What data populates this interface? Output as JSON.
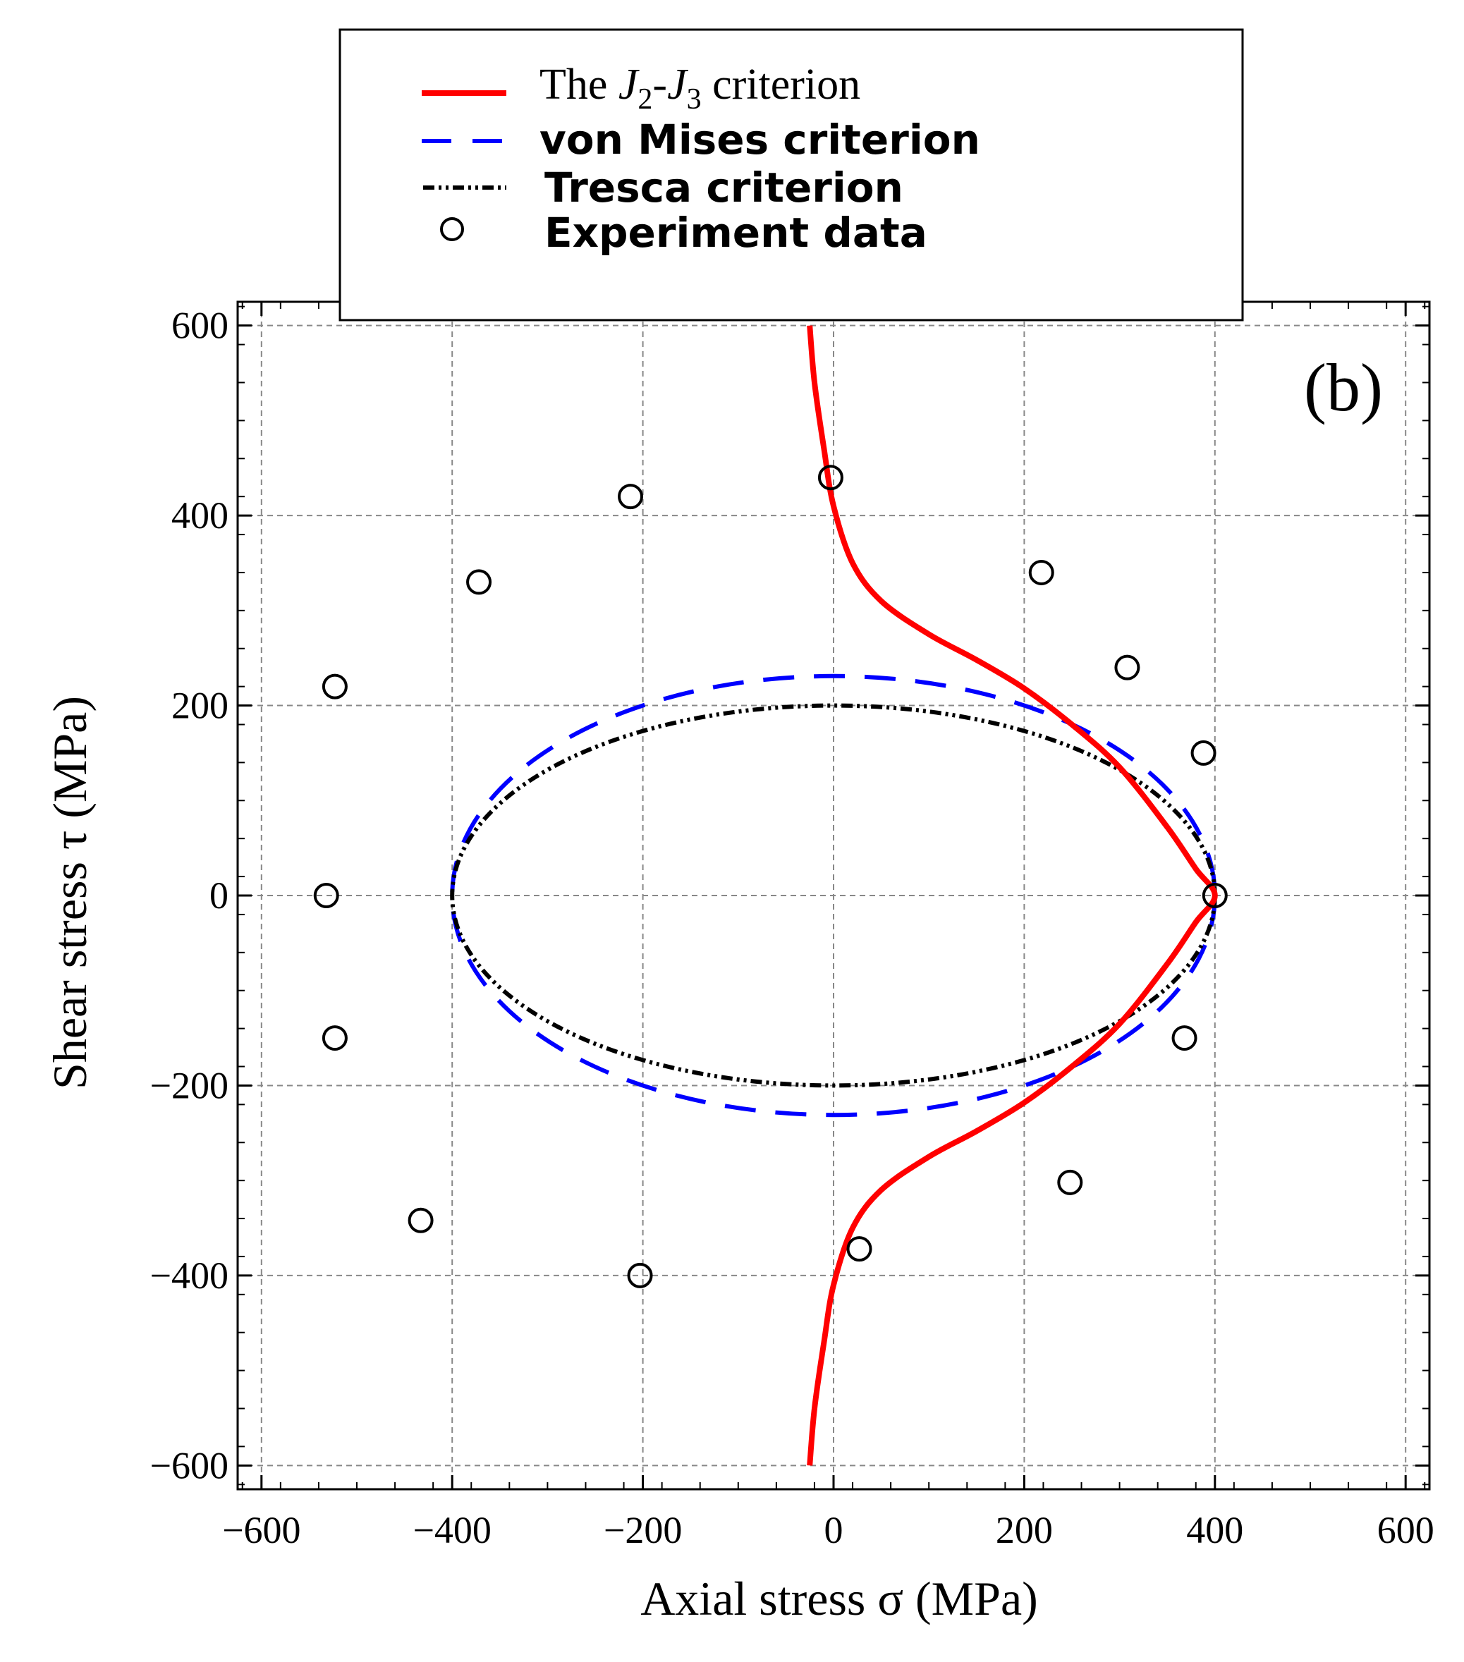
{
  "chart_data": {
    "type": "line",
    "panel_label": "(b)",
    "xlabel": "Axial stress σ (MPa)",
    "ylabel": "Shear stress τ (MPa)",
    "xlim": [
      -625,
      625
    ],
    "ylim": [
      -625,
      625
    ],
    "xticks": [
      -600,
      -400,
      -200,
      0,
      200,
      400,
      600
    ],
    "yticks": [
      -600,
      -400,
      -200,
      0,
      200,
      400,
      600
    ],
    "xtick_labels": [
      "−600",
      "−400",
      "−200",
      "0",
      "200",
      "400",
      "600"
    ],
    "ytick_labels": [
      "−600",
      "−400",
      "−200",
      "0",
      "200",
      "400",
      "600"
    ],
    "grid": true,
    "legend": {
      "placement": "top-center",
      "entries": [
        {
          "id": "j2j3",
          "text_prefix": "The ",
          "text_j": "J",
          "sub1": "2",
          "text_dash": "-",
          "sub2": "3",
          "text_suffix": " criterion",
          "color": "#ff0000",
          "style": "solid"
        },
        {
          "id": "mises",
          "label": "von Mises criterion",
          "color": "#0000ff",
          "style": "dashed"
        },
        {
          "id": "tresca",
          "label": "Tresca criterion",
          "color": "#000000",
          "style": "dash-dot-dot"
        },
        {
          "id": "experiment",
          "label": "Experiment data",
          "color": "#000000",
          "style": "circle"
        }
      ]
    },
    "series": [
      {
        "name": "The J2-J3 criterion",
        "color": "#ff0000",
        "x": [
          -25,
          -20,
          -10,
          0,
          20,
          50,
          100,
          150,
          200,
          250,
          300,
          350,
          380,
          400,
          380,
          350,
          300,
          250,
          200,
          150,
          100,
          50,
          20,
          0,
          -10,
          -20,
          -25
        ],
        "y": [
          600,
          540,
          470,
          410,
          350,
          310,
          275,
          248,
          218,
          180,
          135,
          72,
          28,
          0,
          -28,
          -72,
          -135,
          -180,
          -218,
          -248,
          -275,
          -310,
          -350,
          -410,
          -470,
          -540,
          -600
        ]
      },
      {
        "name": "von Mises criterion",
        "color": "#0000ff",
        "ellipse": {
          "center": [
            0,
            0
          ],
          "semi_axis_sigma": 400,
          "semi_axis_tau": 231
        }
      },
      {
        "name": "Tresca criterion",
        "color": "#000000",
        "ellipse": {
          "center": [
            0,
            0
          ],
          "semi_axis_sigma": 400,
          "semi_axis_tau": 200
        }
      },
      {
        "name": "Experiment data",
        "marker": "open-circle",
        "points": [
          [
            -3,
            440
          ],
          [
            -213,
            420
          ],
          [
            -372,
            330
          ],
          [
            -523,
            220
          ],
          [
            -532,
            0
          ],
          [
            -523,
            -150
          ],
          [
            -433,
            -342
          ],
          [
            -203,
            -400
          ],
          [
            27,
            -372
          ],
          [
            248,
            -302
          ],
          [
            368,
            -150
          ],
          [
            400,
            0
          ],
          [
            388,
            150
          ],
          [
            308,
            240
          ],
          [
            218,
            340
          ]
        ]
      }
    ]
  }
}
